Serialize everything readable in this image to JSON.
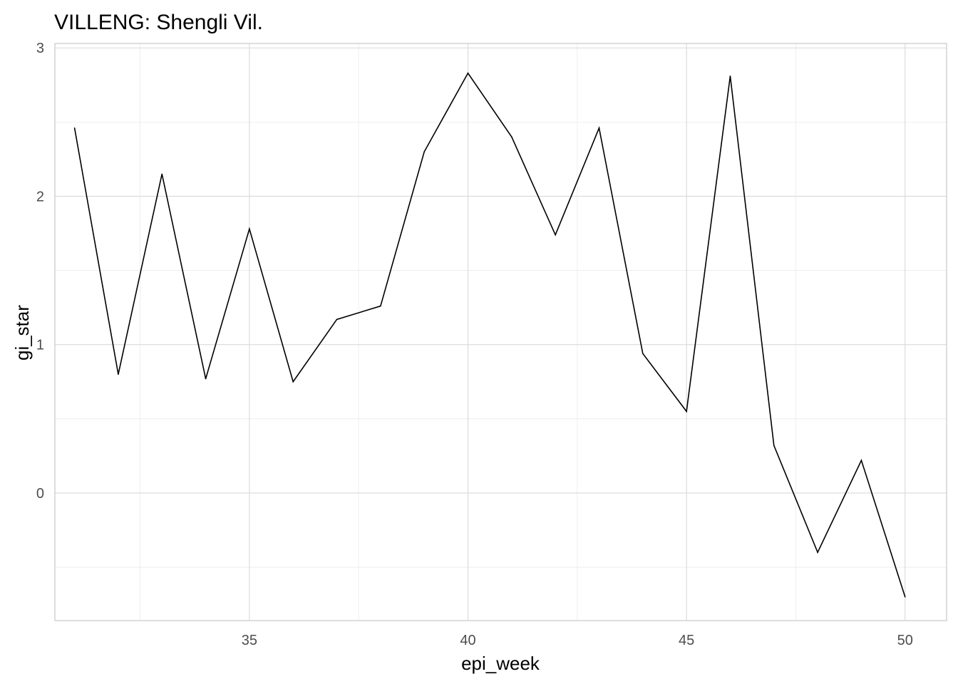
{
  "chart_data": {
    "type": "line",
    "title": "VILLENG: Shengli Vil.",
    "xlabel": "epi_week",
    "ylabel": "gi_star",
    "xlim": [
      30.55,
      50.95
    ],
    "ylim": [
      -0.86,
      3.03
    ],
    "x_ticks": [
      35,
      40,
      45,
      50
    ],
    "x_tick_labels": [
      "35",
      "40",
      "45",
      "50"
    ],
    "y_ticks": [
      0,
      1,
      2,
      3
    ],
    "y_tick_labels": [
      "0",
      "1",
      "2",
      "3"
    ],
    "grid": true,
    "legend": "none",
    "line_color": "#000000",
    "series": [
      {
        "x": [
          31,
          32,
          33,
          34,
          35,
          36,
          37,
          38,
          39,
          40,
          41,
          42,
          43,
          44,
          45,
          46,
          47,
          48,
          49,
          50
        ],
        "values": [
          2.46,
          0.8,
          2.15,
          0.77,
          1.78,
          0.75,
          1.17,
          1.26,
          2.3,
          2.83,
          2.4,
          1.74,
          2.46,
          0.94,
          0.55,
          2.81,
          0.32,
          -0.4,
          0.22,
          -0.7
        ]
      }
    ]
  }
}
